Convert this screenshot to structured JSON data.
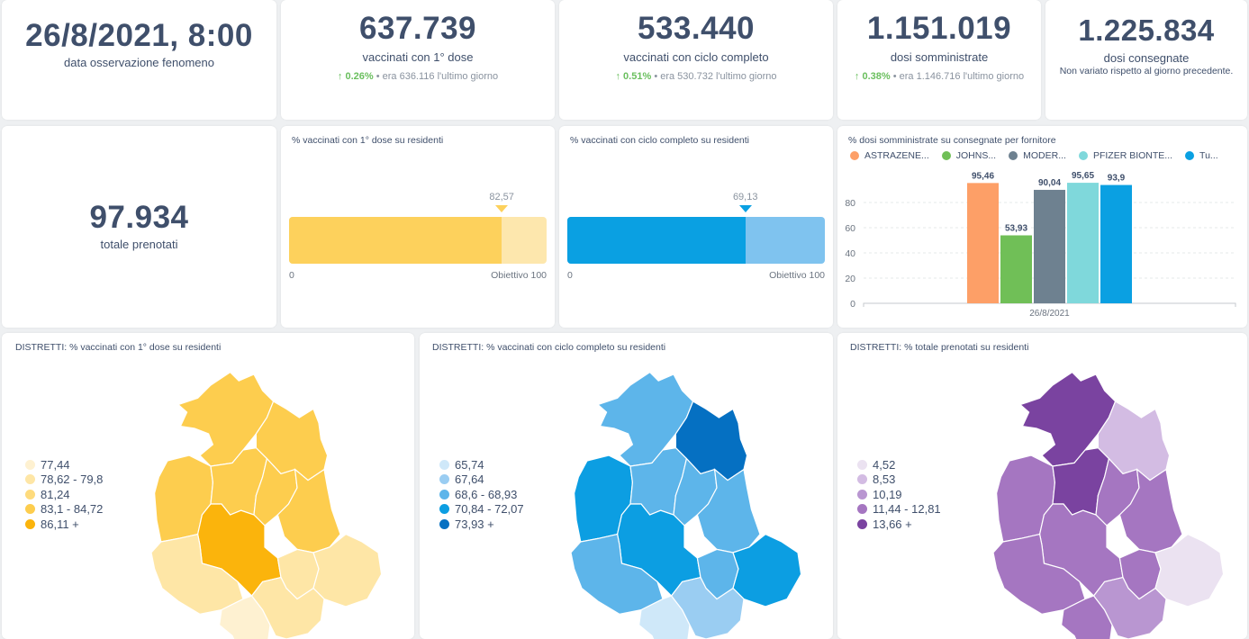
{
  "kpis": {
    "date": {
      "value": "26/8/2021, 8:00",
      "label": "data osservazione fenomeno"
    },
    "first_dose": {
      "value": "637.739",
      "label": "vaccinati con 1° dose",
      "delta_pct": "0.26%",
      "delta_text": "• era 636.116  l'ultimo giorno",
      "trend_icon": "↑"
    },
    "full_cycle": {
      "value": "533.440",
      "label": "vaccinati con ciclo completo",
      "delta_pct": "0.51%",
      "delta_text": "• era 530.732  l'ultimo giorno",
      "trend_icon": "↑"
    },
    "administered": {
      "value": "1.151.019",
      "label": "dosi somministrate",
      "delta_pct": "0.38%",
      "delta_text": "• era 1.146.716  l'ultimo giorno",
      "trend_icon": "↑"
    },
    "delivered": {
      "value": "1.225.834",
      "label": "dosi consegnate",
      "note": "Non variato rispetto al giorno precedente."
    },
    "booked": {
      "value": "97.934",
      "label": "totale prenotati"
    }
  },
  "bullets": {
    "first_dose": {
      "title": "% vaccinati con 1° dose su residenti",
      "value": 82.57,
      "value_label": "82,57",
      "min_label": "0",
      "max_label": "Obiettivo 100",
      "target": 100,
      "fill_color": "#fdd15c",
      "track_color": "#fde7ad"
    },
    "full_cycle": {
      "title": "% vaccinati con ciclo completo su residenti",
      "value": 69.13,
      "value_label": "69,13",
      "min_label": "0",
      "max_label": "Obiettivo 100",
      "target": 100,
      "fill_color": "#0aa0e2",
      "track_color": "#7fc3ef"
    }
  },
  "chart_data": {
    "type": "bar",
    "title": "% dosi somministrate su consegnate per fornitore",
    "categories": [
      "26/8/2021"
    ],
    "series": [
      {
        "name": "ASTRAZENE...",
        "values": [
          95.46
        ],
        "label": "95,46",
        "color": "#fd9f67"
      },
      {
        "name": "JOHNS...",
        "values": [
          53.93
        ],
        "label": "53,93",
        "color": "#70bf57"
      },
      {
        "name": "MODER...",
        "values": [
          90.04
        ],
        "label": "90,04",
        "color": "#6e8190"
      },
      {
        "name": "PFIZER BIONTE...",
        "values": [
          95.65
        ],
        "label": "95,65",
        "color": "#7fd8db"
      },
      {
        "name": "Tu...",
        "values": [
          93.9
        ],
        "label": "93,9",
        "color": "#0aa0e2"
      }
    ],
    "yticks": [
      "0",
      "20",
      "40",
      "60",
      "80"
    ],
    "ylim": [
      0,
      100
    ],
    "xlabel": "",
    "ylabel": "",
    "grid": true,
    "legend": "top"
  },
  "maps": [
    {
      "title": "DISTRETTI: % vaccinati con 1° dose su residenti",
      "legend": [
        {
          "label": "77,44",
          "color": "#fef1d1"
        },
        {
          "label": "78,62 - 79,8",
          "color": "#fee6a6"
        },
        {
          "label": "81,24",
          "color": "#fedb7d"
        },
        {
          "label": "83,1 - 84,72",
          "color": "#fdcd4e"
        },
        {
          "label": "86,11 +",
          "color": "#fbb40c"
        }
      ],
      "region_classes": [
        3,
        3,
        3,
        3,
        3,
        3,
        4,
        1,
        1,
        1,
        0,
        1
      ]
    },
    {
      "title": "DISTRETTI: % vaccinati con ciclo completo su residenti",
      "legend": [
        {
          "label": "65,74",
          "color": "#cfe8f9"
        },
        {
          "label": "67,64",
          "color": "#9acdf2"
        },
        {
          "label": "68,6 - 68,93",
          "color": "#5db5ea"
        },
        {
          "label": "70,84 - 72,07",
          "color": "#0c9ee2"
        },
        {
          "label": "73,93 +",
          "color": "#0570c2"
        }
      ],
      "region_classes": [
        2,
        4,
        3,
        2,
        2,
        2,
        3,
        2,
        2,
        3,
        0,
        1
      ]
    },
    {
      "title": "DISTRETTI: % totale prenotati su residenti",
      "legend": [
        {
          "label": "4,52",
          "color": "#ebe2f1"
        },
        {
          "label": "8,53",
          "color": "#d3bce3"
        },
        {
          "label": "10,19",
          "color": "#b996d1"
        },
        {
          "label": "11,44 - 12,81",
          "color": "#a576c1"
        },
        {
          "label": "13,66 +",
          "color": "#7a43a0"
        }
      ],
      "region_classes": [
        4,
        1,
        3,
        4,
        3,
        3,
        3,
        3,
        3,
        0,
        3,
        2
      ]
    }
  ]
}
